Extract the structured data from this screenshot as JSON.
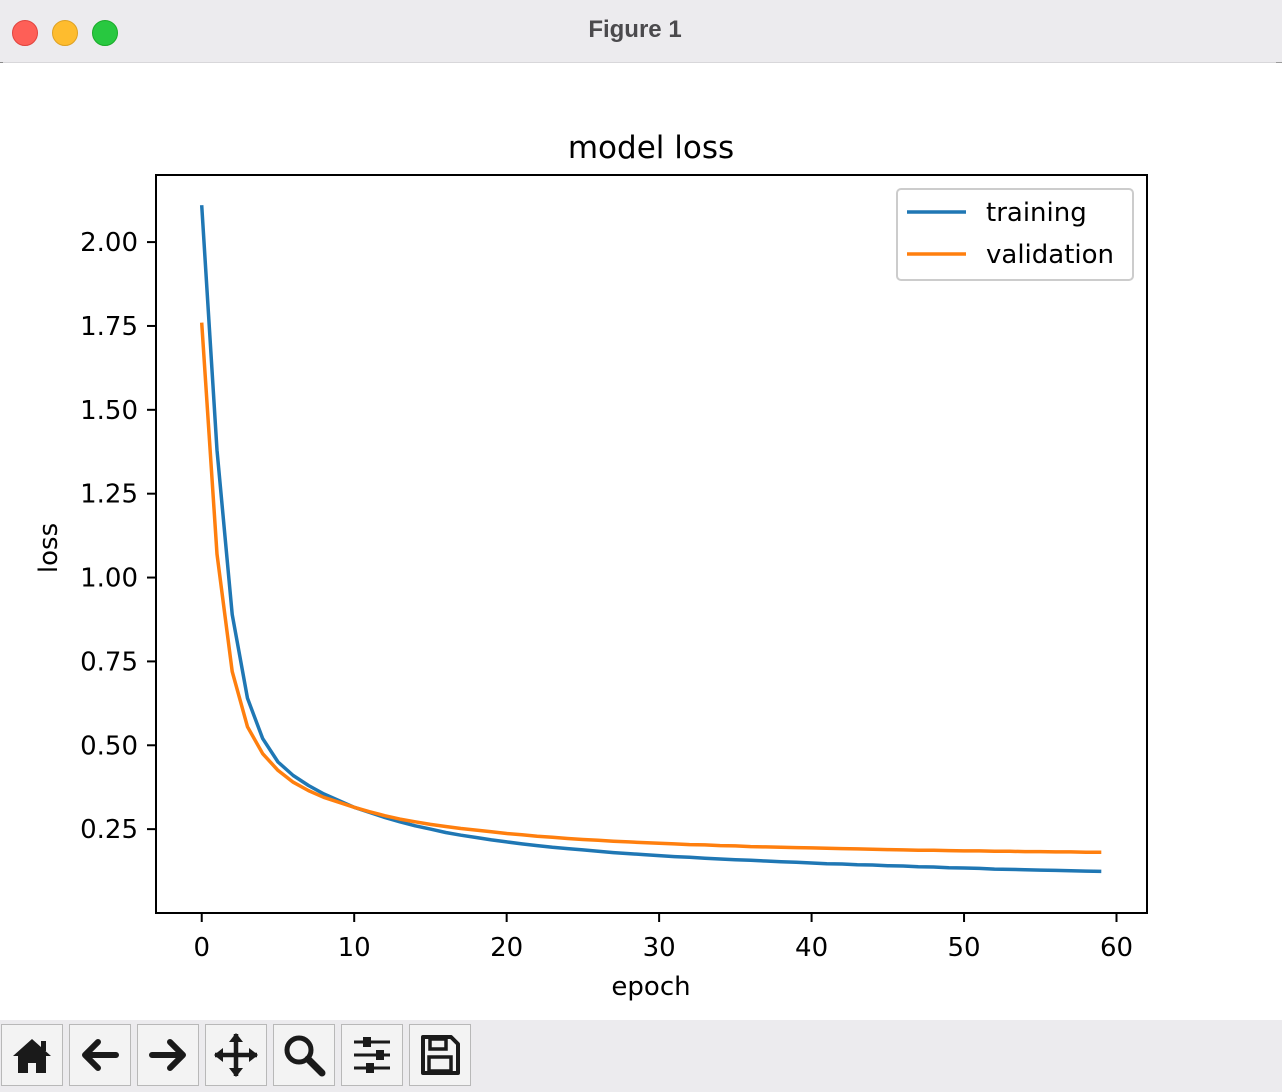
{
  "window": {
    "title": "Figure 1"
  },
  "toolbar": {
    "buttons": [
      {
        "name": "home-icon"
      },
      {
        "name": "back-arrow-icon"
      },
      {
        "name": "forward-arrow-icon"
      },
      {
        "name": "pan-icon"
      },
      {
        "name": "zoom-icon"
      },
      {
        "name": "configure-subplots-icon"
      },
      {
        "name": "save-icon"
      }
    ]
  },
  "chart_data": {
    "type": "line",
    "title": "model loss",
    "xlabel": "epoch",
    "ylabel": "loss",
    "xlim": [
      -3,
      62
    ],
    "ylim": [
      0.0,
      2.2
    ],
    "xticks": [
      0,
      10,
      20,
      30,
      40,
      50,
      60
    ],
    "xtick_labels": [
      "0",
      "10",
      "20",
      "30",
      "40",
      "50",
      "60"
    ],
    "yticks": [
      0.25,
      0.5,
      0.75,
      1.0,
      1.25,
      1.5,
      1.75,
      2.0
    ],
    "ytick_labels": [
      "0.25",
      "0.50",
      "0.75",
      "1.00",
      "1.25",
      "1.50",
      "1.75",
      "2.00"
    ],
    "legend_position": "top-right",
    "grid": false,
    "series": [
      {
        "name": "training",
        "color": "#1f77b4",
        "values": [
          2.11,
          1.38,
          0.89,
          0.64,
          0.52,
          0.45,
          0.41,
          0.38,
          0.355,
          0.335,
          0.315,
          0.3,
          0.285,
          0.272,
          0.26,
          0.25,
          0.24,
          0.232,
          0.225,
          0.218,
          0.212,
          0.206,
          0.201,
          0.196,
          0.192,
          0.188,
          0.184,
          0.18,
          0.177,
          0.174,
          0.171,
          0.168,
          0.166,
          0.163,
          0.161,
          0.159,
          0.157,
          0.155,
          0.153,
          0.151,
          0.149,
          0.147,
          0.146,
          0.144,
          0.143,
          0.141,
          0.14,
          0.138,
          0.137,
          0.135,
          0.134,
          0.133,
          0.131,
          0.13,
          0.129,
          0.128,
          0.127,
          0.126,
          0.125,
          0.124
        ]
      },
      {
        "name": "validation",
        "color": "#ff7f0e",
        "values": [
          1.76,
          1.07,
          0.72,
          0.555,
          0.475,
          0.425,
          0.39,
          0.365,
          0.345,
          0.33,
          0.315,
          0.302,
          0.29,
          0.28,
          0.272,
          0.264,
          0.258,
          0.252,
          0.247,
          0.242,
          0.237,
          0.233,
          0.229,
          0.226,
          0.222,
          0.219,
          0.217,
          0.214,
          0.212,
          0.21,
          0.208,
          0.206,
          0.204,
          0.203,
          0.201,
          0.2,
          0.198,
          0.197,
          0.196,
          0.195,
          0.194,
          0.193,
          0.192,
          0.191,
          0.19,
          0.189,
          0.188,
          0.187,
          0.187,
          0.186,
          0.185,
          0.185,
          0.184,
          0.184,
          0.183,
          0.183,
          0.182,
          0.182,
          0.181,
          0.181
        ]
      }
    ]
  }
}
